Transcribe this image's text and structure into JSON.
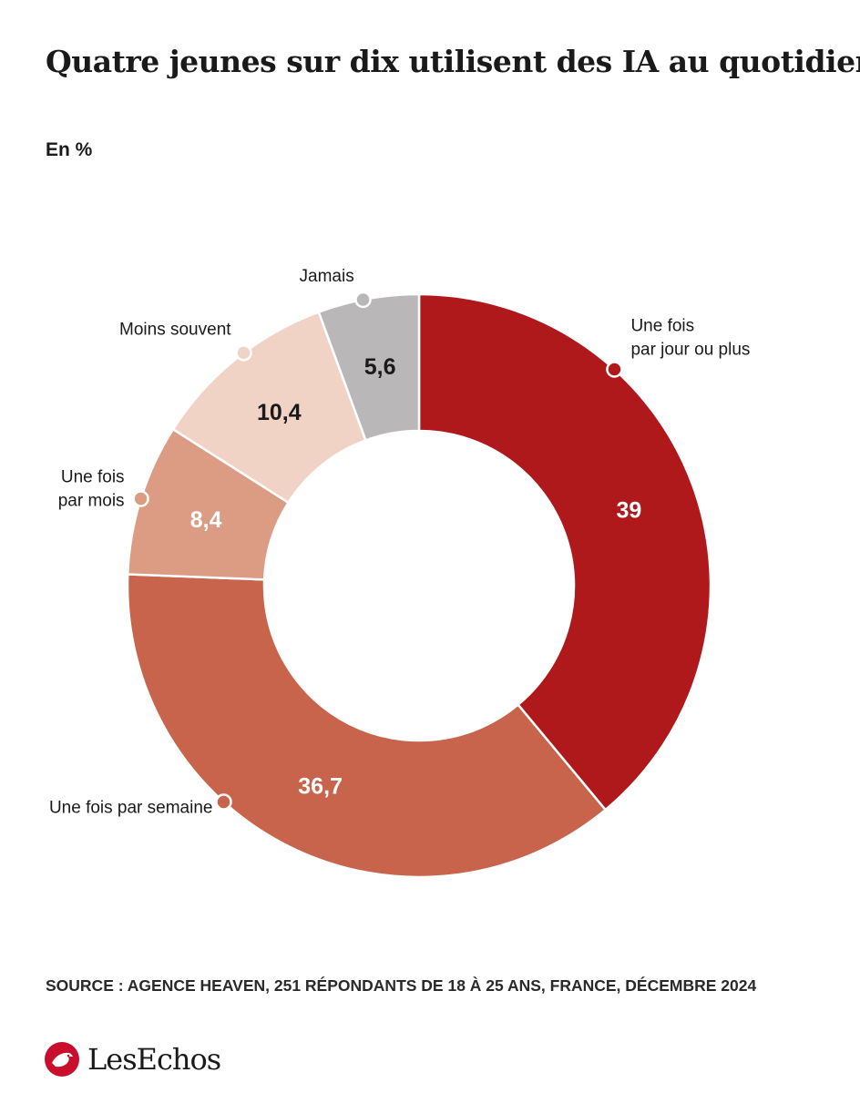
{
  "title": "Quatre jeunes sur dix utilisent des IA au quotidien",
  "subtitle": "En %",
  "source": "SOURCE : AGENCE HEAVEN, 251 RÉPONDANTS DE 18 À 25 ANS, FRANCE, DÉCEMBRE 2024",
  "brand": {
    "name": "LesEchos",
    "logo_icon": "les-echos-logo-icon",
    "color": "#c8102e"
  },
  "chart_data": {
    "type": "pie",
    "style": "donut",
    "title": "Quatre jeunes sur dix utilisent des IA au quotidien",
    "unit": "En %",
    "slices": [
      {
        "label": "Une fois par jour ou plus",
        "label_lines": [
          "Une fois",
          "par jour ou plus"
        ],
        "value": 39,
        "value_label": "39",
        "color": "#b0191c",
        "value_text_color": "#ffffff"
      },
      {
        "label": "Une fois par semaine",
        "label_lines": [
          "Une fois par semaine"
        ],
        "value": 36.7,
        "value_label": "36,7",
        "color": "#c8644b",
        "value_text_color": "#ffffff"
      },
      {
        "label": "Une fois par mois",
        "label_lines": [
          "Une fois",
          "par mois"
        ],
        "value": 8.4,
        "value_label": "8,4",
        "color": "#dc9b83",
        "value_text_color": "#ffffff"
      },
      {
        "label": "Moins souvent",
        "label_lines": [
          "Moins souvent"
        ],
        "value": 10.4,
        "value_label": "10,4",
        "color": "#f1d3c6",
        "value_text_color": "#1a1a1a"
      },
      {
        "label": "Jamais",
        "label_lines": [
          "Jamais"
        ],
        "value": 5.6,
        "value_label": "5,6",
        "color": "#b9b7b8",
        "value_text_color": "#1a1a1a"
      }
    ]
  }
}
